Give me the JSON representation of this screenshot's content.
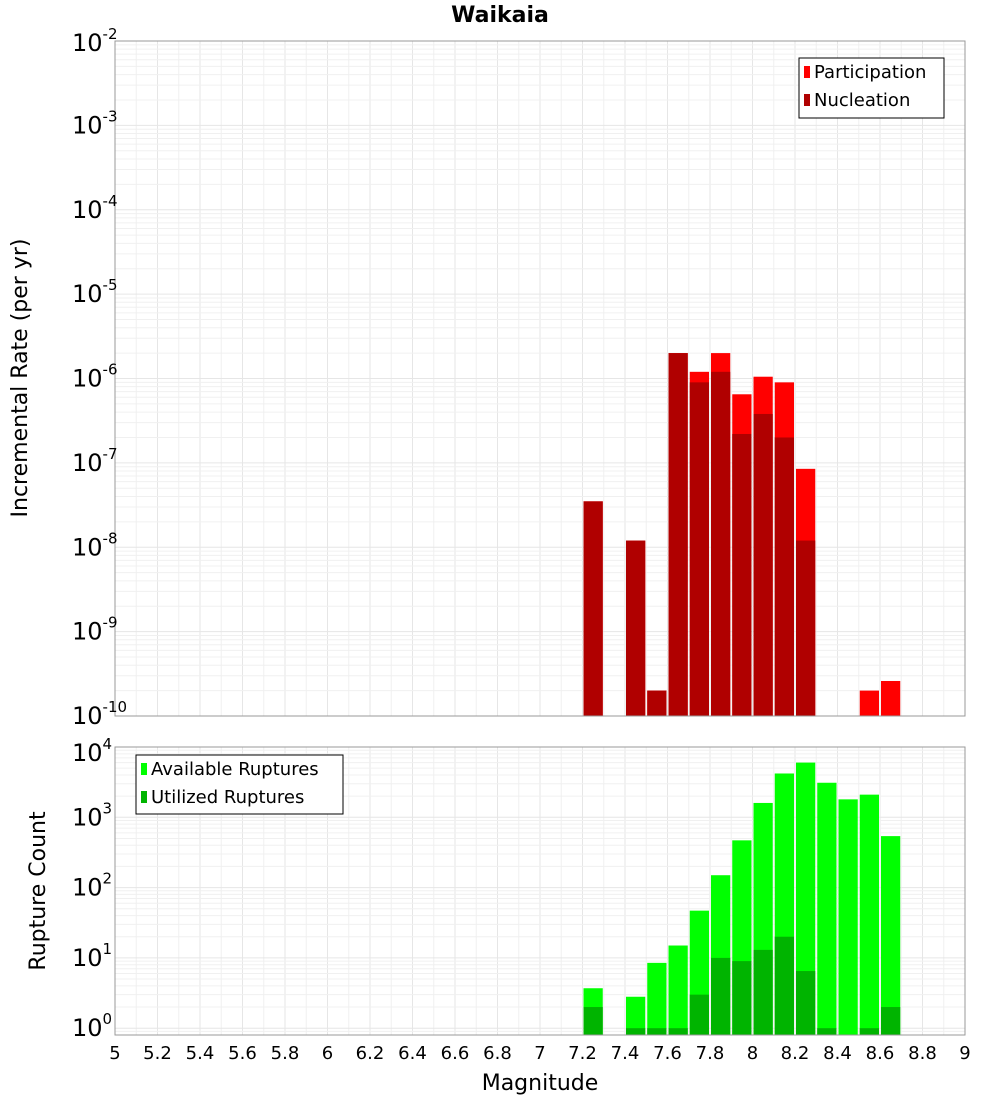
{
  "title": "Waikaia",
  "xlabel": "Magnitude",
  "colors": {
    "participation": "#ff0000",
    "nucleation": "#b00000",
    "available": "#00ff00",
    "utilized": "#00b400",
    "grid": "#e6e6e6",
    "frame": "#999999"
  },
  "chart_data": [
    {
      "type": "bar",
      "ylabel": "Incremental Rate (per yr)",
      "yscale": "log",
      "ylim": [
        1e-10,
        0.01
      ],
      "xlim": [
        5,
        9
      ],
      "x_ticks": [
        "5",
        "5.2",
        "5.4",
        "5.6",
        "5.8",
        "6",
        "6.2",
        "6.4",
        "6.6",
        "6.8",
        "7",
        "7.2",
        "7.4",
        "7.6",
        "7.8",
        "8",
        "8.2",
        "8.4",
        "8.6",
        "8.8",
        "9"
      ],
      "y_ticks": [
        {
          "base": "10",
          "exp": "-2"
        },
        {
          "base": "10",
          "exp": "-3"
        },
        {
          "base": "10",
          "exp": "-4"
        },
        {
          "base": "10",
          "exp": "-5"
        },
        {
          "base": "10",
          "exp": "-6"
        },
        {
          "base": "10",
          "exp": "-7"
        },
        {
          "base": "10",
          "exp": "-8"
        },
        {
          "base": "10",
          "exp": "-9"
        },
        {
          "base": "10",
          "exp": "-10"
        }
      ],
      "legend_position": "top-right",
      "series": [
        {
          "name": "Participation",
          "x": [
            7.25,
            7.45,
            7.55,
            7.65,
            7.75,
            7.85,
            7.95,
            8.05,
            8.15,
            8.25,
            8.55,
            8.65
          ],
          "values": [
            3.5e-08,
            1.2e-08,
            2e-10,
            2e-06,
            1.2e-06,
            2e-06,
            6.5e-07,
            1.05e-06,
            9e-07,
            8.5e-08,
            2e-10,
            2.6e-10
          ]
        },
        {
          "name": "Nucleation",
          "x": [
            7.25,
            7.45,
            7.55,
            7.65,
            7.75,
            7.85,
            7.95,
            8.05,
            8.15,
            8.25
          ],
          "values": [
            3.5e-08,
            1.2e-08,
            2e-10,
            2e-06,
            9e-07,
            1.2e-06,
            2.2e-07,
            3.8e-07,
            2e-07,
            1.2e-08
          ]
        }
      ]
    },
    {
      "type": "bar",
      "ylabel": "Rupture Count",
      "yscale": "log",
      "ylim": [
        0.8,
        10000
      ],
      "xlim": [
        5,
        9
      ],
      "y_ticks": [
        {
          "base": "10",
          "exp": "4"
        },
        {
          "base": "10",
          "exp": "3"
        },
        {
          "base": "10",
          "exp": "2"
        },
        {
          "base": "10",
          "exp": "1"
        },
        {
          "base": "10",
          "exp": "0"
        }
      ],
      "legend_position": "top-left",
      "series": [
        {
          "name": "Available Ruptures",
          "x": [
            7.25,
            7.45,
            7.55,
            7.65,
            7.75,
            7.85,
            7.95,
            8.05,
            8.15,
            8.25,
            8.35,
            8.45,
            8.55,
            8.65
          ],
          "values": [
            3.7,
            2.8,
            8.5,
            15,
            47,
            150,
            470,
            1600,
            4200,
            6000,
            3100,
            1800,
            2100,
            540
          ]
        },
        {
          "name": "Utilized Ruptures",
          "x": [
            7.25,
            7.45,
            7.55,
            7.65,
            7.75,
            7.85,
            7.95,
            8.05,
            8.15,
            8.25,
            8.35,
            8.55,
            8.65
          ],
          "values": [
            2,
            1,
            1,
            1,
            3,
            10,
            9,
            13,
            20,
            6.5,
            1,
            1,
            2
          ]
        }
      ]
    }
  ]
}
